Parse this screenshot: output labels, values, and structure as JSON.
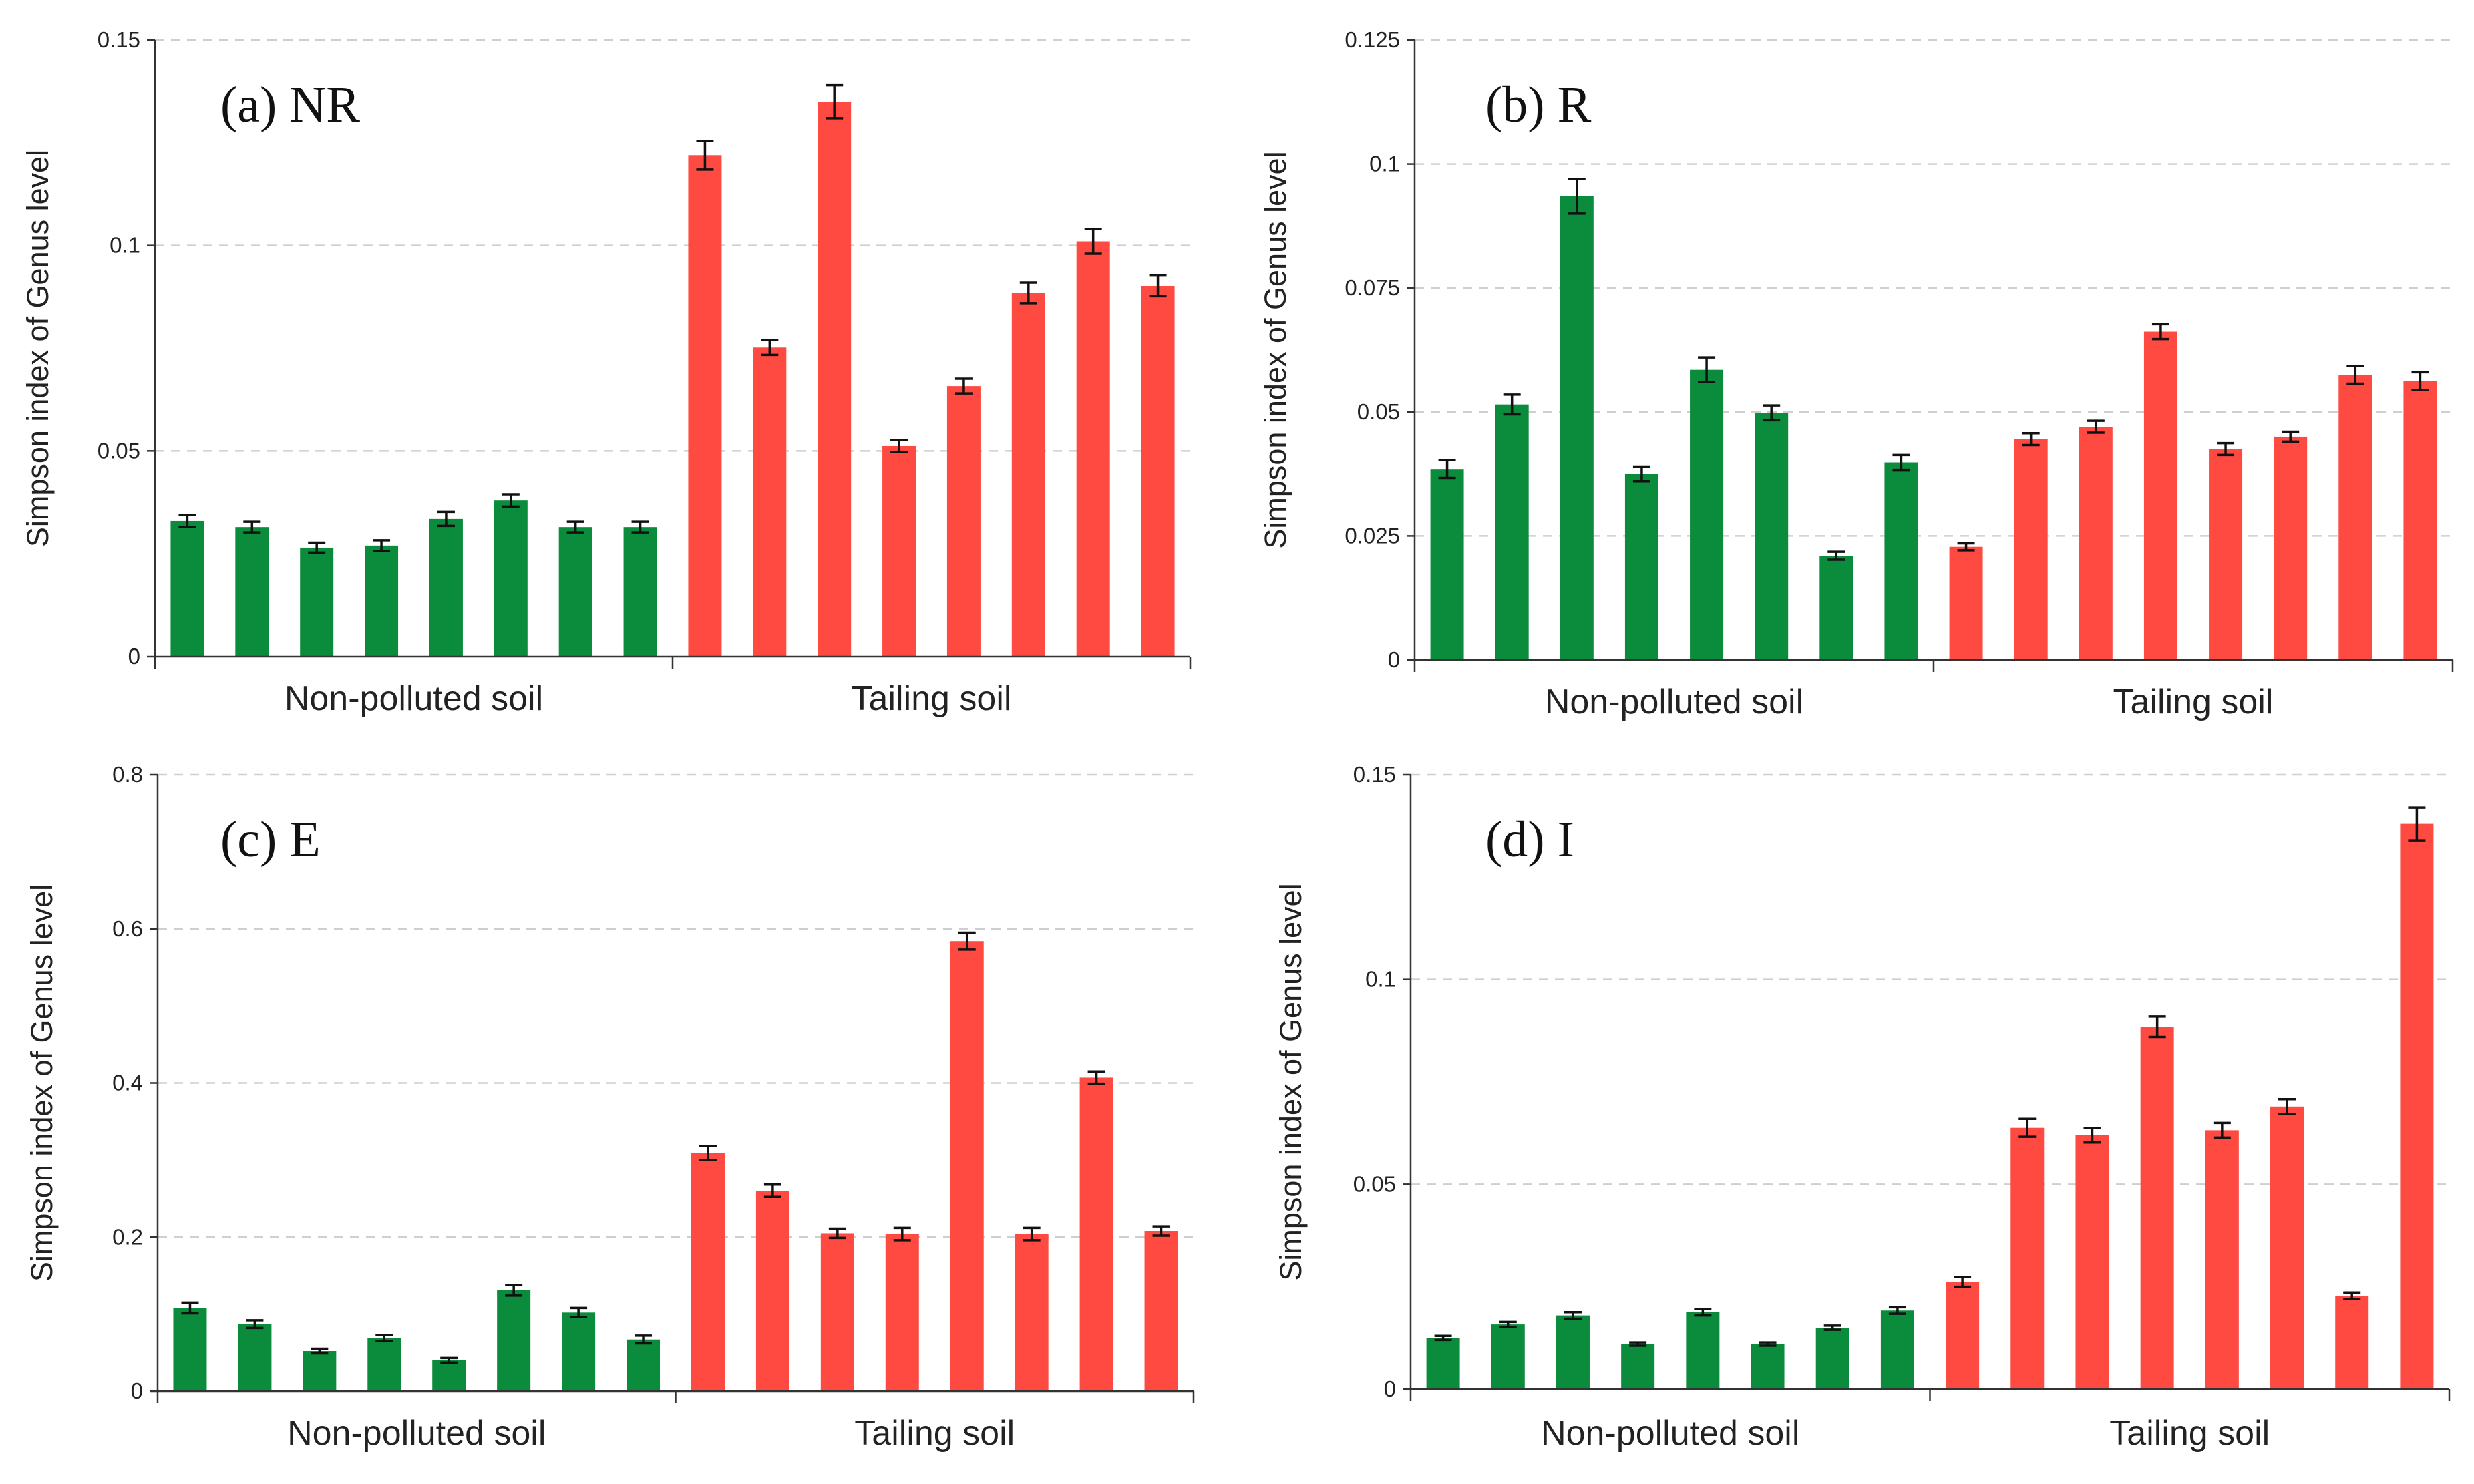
{
  "figure_description_colors": {
    "non_polluted": "#0b8c3c",
    "tailing": "#fe4a40"
  },
  "chart_data": [
    {
      "id": "a",
      "type": "bar",
      "title": "(a) NR",
      "ylabel": "Simpson index of Genus level",
      "xlabel": "",
      "ylim": [
        0,
        0.15
      ],
      "yticks": [
        {
          "value": 0,
          "label": "0"
        },
        {
          "value": 0.05,
          "label": "0.05"
        },
        {
          "value": 0.1,
          "label": "0.1"
        },
        {
          "value": 0.15,
          "label": "0.15"
        }
      ],
      "grid": true,
      "groups": [
        "Non-polluted soil",
        "Tailing soil"
      ],
      "series": [
        {
          "name": "Non-polluted soil",
          "color": "#0b8c3c",
          "values": [
            0.033,
            0.0315,
            0.0265,
            0.027,
            0.0335,
            0.038,
            0.0315,
            0.0315
          ],
          "errors": [
            0.0015,
            0.0013,
            0.0012,
            0.0013,
            0.0017,
            0.0015,
            0.0013,
            0.0013
          ]
        },
        {
          "name": "Tailing soil",
          "color": "#fe4a40",
          "values": [
            0.122,
            0.0752,
            0.135,
            0.0512,
            0.0658,
            0.0885,
            0.101,
            0.0902
          ],
          "errors": [
            0.0035,
            0.0018,
            0.004,
            0.0015,
            0.0018,
            0.0025,
            0.003,
            0.0025
          ]
        }
      ]
    },
    {
      "id": "b",
      "type": "bar",
      "title": "(b) R",
      "ylabel": "Simpson index of Genus level",
      "xlabel": "",
      "ylim": [
        0,
        0.125
      ],
      "yticks": [
        {
          "value": 0,
          "label": "0"
        },
        {
          "value": 0.025,
          "label": "0.025"
        },
        {
          "value": 0.05,
          "label": "0.05"
        },
        {
          "value": 0.075,
          "label": "0.075"
        },
        {
          "value": 0.1,
          "label": "0.1"
        },
        {
          "value": 0.125,
          "label": "0.125"
        }
      ],
      "grid": true,
      "groups": [
        "Non-polluted soil",
        "Tailing soil"
      ],
      "series": [
        {
          "name": "Non-polluted soil",
          "color": "#0b8c3c",
          "values": [
            0.0385,
            0.0515,
            0.0935,
            0.0375,
            0.0585,
            0.0498,
            0.021,
            0.0398
          ],
          "errors": [
            0.0018,
            0.002,
            0.0035,
            0.0015,
            0.0025,
            0.0015,
            0.0008,
            0.0015
          ]
        },
        {
          "name": "Tailing soil",
          "color": "#fe4a40",
          "values": [
            0.0228,
            0.0445,
            0.047,
            0.0662,
            0.0425,
            0.045,
            0.0575,
            0.0562
          ],
          "errors": [
            0.0007,
            0.0012,
            0.0012,
            0.0015,
            0.0012,
            0.001,
            0.0018,
            0.0018
          ]
        }
      ]
    },
    {
      "id": "c",
      "type": "bar",
      "title": "(c) E",
      "ylabel": "Simpson index of Genus level",
      "xlabel": "",
      "ylim": [
        0,
        0.8
      ],
      "yticks": [
        {
          "value": 0,
          "label": "0"
        },
        {
          "value": 0.2,
          "label": "0.2"
        },
        {
          "value": 0.4,
          "label": "0.4"
        },
        {
          "value": 0.6,
          "label": "0.6"
        },
        {
          "value": 0.8,
          "label": "0.8"
        }
      ],
      "grid": true,
      "groups": [
        "Non-polluted soil",
        "Tailing soil"
      ],
      "series": [
        {
          "name": "Non-polluted soil",
          "color": "#0b8c3c",
          "values": [
            0.108,
            0.087,
            0.052,
            0.069,
            0.04,
            0.131,
            0.102,
            0.067
          ],
          "errors": [
            0.007,
            0.005,
            0.003,
            0.004,
            0.003,
            0.007,
            0.006,
            0.005
          ]
        },
        {
          "name": "Tailing soil",
          "color": "#fe4a40",
          "values": [
            0.309,
            0.26,
            0.205,
            0.204,
            0.584,
            0.204,
            0.407,
            0.208
          ],
          "errors": [
            0.009,
            0.008,
            0.006,
            0.008,
            0.011,
            0.008,
            0.008,
            0.006
          ]
        }
      ]
    },
    {
      "id": "d",
      "type": "bar",
      "title": "(d) I",
      "ylabel": "Simpson index of Genus level",
      "xlabel": "",
      "ylim": [
        0,
        0.15
      ],
      "yticks": [
        {
          "value": 0,
          "label": "0"
        },
        {
          "value": 0.05,
          "label": "0.05"
        },
        {
          "value": 0.1,
          "label": "0.1"
        },
        {
          "value": 0.15,
          "label": "0.15"
        }
      ],
      "grid": true,
      "groups": [
        "Non-polluted soil",
        "Tailing soil"
      ],
      "series": [
        {
          "name": "Non-polluted soil",
          "color": "#0b8c3c",
          "values": [
            0.0125,
            0.0158,
            0.018,
            0.011,
            0.0188,
            0.011,
            0.015,
            0.0192
          ],
          "errors": [
            0.0005,
            0.0006,
            0.0008,
            0.0004,
            0.0008,
            0.0004,
            0.0005,
            0.0008
          ]
        },
        {
          "name": "Tailing soil",
          "color": "#fe4a40",
          "values": [
            0.0262,
            0.0638,
            0.062,
            0.0885,
            0.0632,
            0.069,
            0.0228,
            0.138
          ],
          "errors": [
            0.0012,
            0.0022,
            0.0018,
            0.0025,
            0.0018,
            0.0018,
            0.0008,
            0.004
          ]
        }
      ]
    }
  ]
}
